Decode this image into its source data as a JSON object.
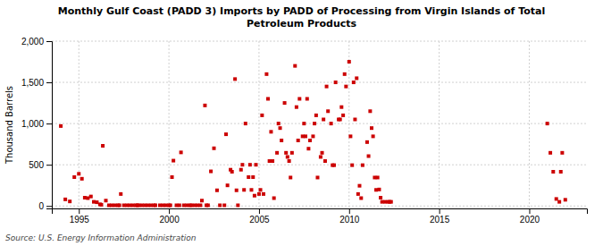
{
  "chart_data": {
    "type": "scatter",
    "title": "Monthly Gulf Coast (PADD 3) Imports by PADD of Processing from Virgin Islands of Total\nPetroleum Products",
    "y_label": "Thousand Barrels",
    "annotations": [
      "Source: U.S. Energy Information Administration"
    ],
    "color": "#cc0000",
    "marker": "square",
    "grid": true,
    "xlim": [
      1993.5,
      2023.2
    ],
    "ylim": [
      -30,
      2000
    ],
    "xticks": [
      1995,
      2000,
      2005,
      2010,
      2015,
      2020
    ],
    "yticks": [
      0,
      500,
      {
        "value": 1000,
        "label": "1,000"
      },
      {
        "value": 1500,
        "label": "1,500"
      },
      {
        "value": 2000,
        "label": "2,000"
      }
    ],
    "x": [
      1994.0,
      1994.25,
      1994.5,
      1994.75,
      1995.0,
      1995.17,
      1995.33,
      1995.5,
      1995.67,
      1995.83,
      1996.0,
      1996.17,
      1996.25,
      1996.33,
      1996.5,
      1996.67,
      1996.83,
      1997.0,
      1997.17,
      1997.25,
      1997.33,
      1997.5,
      1997.67,
      1997.83,
      1998.0,
      1998.17,
      1998.25,
      1998.33,
      1998.5,
      1998.67,
      1998.83,
      1999.0,
      1999.17,
      1999.25,
      1999.5,
      1999.67,
      1999.83,
      2000.0,
      2000.08,
      2000.17,
      2000.25,
      2000.42,
      2000.58,
      2000.67,
      2000.83,
      2001.0,
      2001.17,
      2001.25,
      2001.42,
      2001.58,
      2001.75,
      2001.83,
      2002.0,
      2002.08,
      2002.17,
      2002.33,
      2002.5,
      2002.67,
      2002.83,
      2003.08,
      2003.17,
      2003.25,
      2003.42,
      2003.5,
      2003.67,
      2003.75,
      2003.83,
      2004.0,
      2004.08,
      2004.17,
      2004.25,
      2004.42,
      2004.5,
      2004.58,
      2004.67,
      2004.75,
      2004.83,
      2005.0,
      2005.08,
      2005.17,
      2005.25,
      2005.42,
      2005.5,
      2005.58,
      2005.67,
      2005.75,
      2005.83,
      2006.0,
      2006.08,
      2006.17,
      2006.25,
      2006.42,
      2006.5,
      2006.58,
      2006.67,
      2006.75,
      2006.83,
      2007.0,
      2007.08,
      2007.17,
      2007.25,
      2007.42,
      2007.5,
      2007.58,
      2007.67,
      2007.75,
      2007.83,
      2008.0,
      2008.08,
      2008.17,
      2008.25,
      2008.42,
      2008.5,
      2008.58,
      2008.67,
      2008.75,
      2008.83,
      2009.0,
      2009.08,
      2009.17,
      2009.25,
      2009.42,
      2009.5,
      2009.58,
      2009.67,
      2009.75,
      2009.83,
      2010.0,
      2010.08,
      2010.17,
      2010.25,
      2010.33,
      2010.42,
      2010.5,
      2010.58,
      2010.67,
      2010.75,
      2011.0,
      2011.08,
      2011.17,
      2011.25,
      2011.33,
      2011.42,
      2011.5,
      2011.58,
      2011.67,
      2011.75,
      2011.83,
      2012.0,
      2012.17,
      2012.25,
      2012.33,
      2021.0,
      2021.17,
      2021.33,
      2021.5,
      2021.67,
      2021.75,
      2021.83,
      2022.0
    ],
    "values": [
      970,
      80,
      55,
      350,
      390,
      330,
      100,
      95,
      115,
      50,
      45,
      20,
      15,
      730,
      65,
      8,
      8,
      8,
      8,
      8,
      145,
      8,
      8,
      8,
      8,
      8,
      8,
      8,
      8,
      8,
      8,
      8,
      8,
      8,
      8,
      8,
      8,
      8,
      8,
      350,
      550,
      8,
      8,
      650,
      8,
      8,
      8,
      8,
      8,
      8,
      8,
      65,
      1220,
      8,
      8,
      420,
      700,
      190,
      8,
      8,
      870,
      250,
      440,
      415,
      1540,
      190,
      8,
      440,
      500,
      195,
      1000,
      350,
      500,
      195,
      350,
      125,
      500,
      145,
      195,
      1100,
      145,
      1600,
      1300,
      545,
      900,
      545,
      95,
      645,
      1000,
      945,
      795,
      1250,
      645,
      595,
      545,
      345,
      645,
      1700,
      1200,
      795,
      1300,
      845,
      1000,
      845,
      1300,
      695,
      795,
      845,
      1000,
      1100,
      345,
      595,
      645,
      1050,
      545,
      1450,
      1150,
      1000,
      495,
      495,
      1500,
      1050,
      1050,
      1200,
      1100,
      1600,
      1450,
      1750,
      845,
      495,
      1500,
      1050,
      1550,
      145,
      245,
      95,
      495,
      775,
      605,
      1150,
      945,
      845,
      345,
      195,
      345,
      200,
      100,
      50,
      50,
      50,
      50,
      50,
      1000,
      645,
      415,
      85,
      50,
      415,
      645,
      75
    ]
  }
}
